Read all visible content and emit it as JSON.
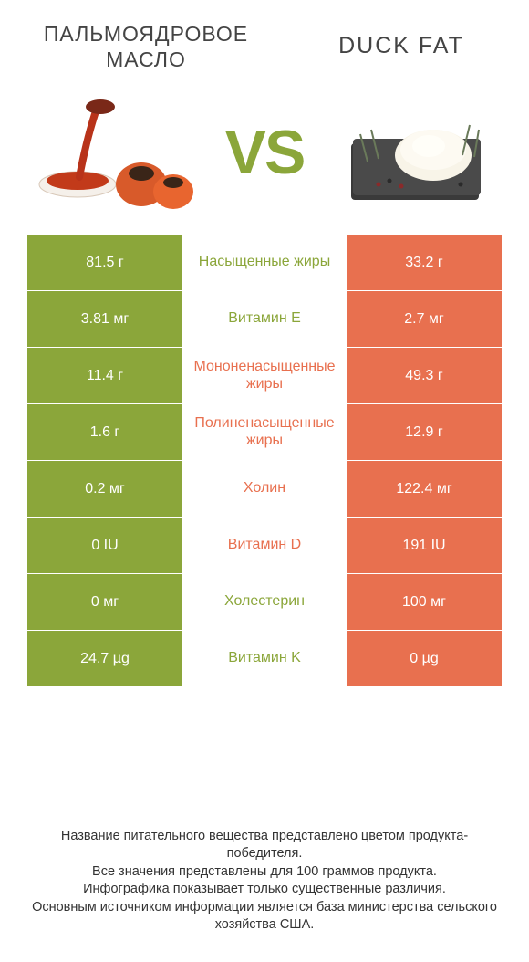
{
  "header": {
    "left_title": "ПАЛЬМОЯДРОВОЕ МАСЛО",
    "right_title": "DUCK FAT",
    "vs": "VS"
  },
  "colors": {
    "left": "#8ba63a",
    "right": "#e8704f",
    "left_text": "#8ba63a",
    "right_text": "#e8704f"
  },
  "rows": [
    {
      "label": "Насыщенные жиры",
      "left": "81.5 г",
      "right": "33.2 г",
      "winner": "left"
    },
    {
      "label": "Витамин E",
      "left": "3.81 мг",
      "right": "2.7 мг",
      "winner": "left"
    },
    {
      "label": "Мононенасыщенные жиры",
      "left": "11.4 г",
      "right": "49.3 г",
      "winner": "right"
    },
    {
      "label": "Полиненасыщенные жиры",
      "left": "1.6 г",
      "right": "12.9 г",
      "winner": "right"
    },
    {
      "label": "Холин",
      "left": "0.2 мг",
      "right": "122.4 мг",
      "winner": "right"
    },
    {
      "label": "Витамин D",
      "left": "0 IU",
      "right": "191 IU",
      "winner": "right"
    },
    {
      "label": "Холестерин",
      "left": "0 мг",
      "right": "100 мг",
      "winner": "left"
    },
    {
      "label": "Витамин K",
      "left": "24.7 µg",
      "right": "0 µg",
      "winner": "left"
    }
  ],
  "footer": {
    "line1": "Название питательного вещества представлено цветом продукта-победителя.",
    "line2": "Все значения представлены для 100 граммов продукта.",
    "line3": "Инфографика показывает только существенные различия.",
    "line4": "Основным источником информации является база министерства сельского хозяйства США."
  }
}
